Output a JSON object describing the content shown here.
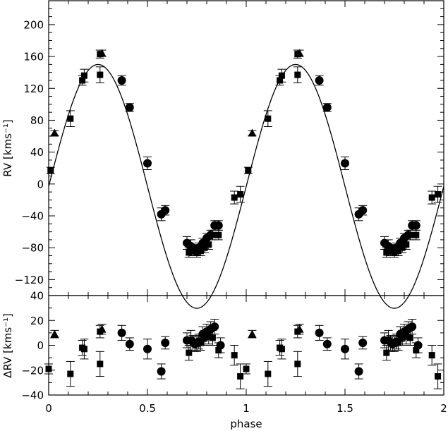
{
  "chart_data": [
    {
      "type": "scatter",
      "panel": "top",
      "xlabel": "",
      "ylabel": "RV  [kms⁻¹]",
      "xlim": [
        0,
        2
      ],
      "ylim": [
        -140,
        230
      ],
      "yticks": [
        -120,
        -80,
        -40,
        0,
        40,
        80,
        120,
        160,
        200
      ],
      "ytick_labels": [
        "−120",
        "−80",
        "−40",
        "0",
        "40",
        "80",
        "120",
        "160",
        "200"
      ],
      "model_curve": {
        "style": "solid line",
        "offset": -3,
        "amplitude": 153,
        "phase_of_max": 0.25,
        "period_in_phase": 1
      },
      "series": [
        {
          "marker": "circle",
          "points": [
            {
              "x": 0.37,
              "y": 130,
              "err": 6
            },
            {
              "x": 0.41,
              "y": 96,
              "err": 5
            },
            {
              "x": 0.5,
              "y": 26,
              "err": 8
            },
            {
              "x": 0.57,
              "y": -38,
              "err": 8
            },
            {
              "x": 0.59,
              "y": -33,
              "err": 6
            },
            {
              "x": 0.7,
              "y": -74,
              "err": 8
            },
            {
              "x": 0.72,
              "y": -78,
              "err": 8
            },
            {
              "x": 0.74,
              "y": -82,
              "err": 6
            },
            {
              "x": 0.76,
              "y": -80,
              "err": 6
            },
            {
              "x": 0.78,
              "y": -74,
              "err": 6
            },
            {
              "x": 0.8,
              "y": -68,
              "err": 6
            },
            {
              "x": 0.82,
              "y": -64,
              "err": 6
            },
            {
              "x": 0.84,
              "y": -52,
              "err": 6
            },
            {
              "x": 0.86,
              "y": -52,
              "err": 6
            },
            {
              "x": 1.37,
              "y": 130,
              "err": 6
            },
            {
              "x": 1.41,
              "y": 96,
              "err": 5
            },
            {
              "x": 1.5,
              "y": 26,
              "err": 8
            },
            {
              "x": 1.57,
              "y": -38,
              "err": 8
            },
            {
              "x": 1.59,
              "y": -33,
              "err": 6
            },
            {
              "x": 1.7,
              "y": -74,
              "err": 8
            },
            {
              "x": 1.72,
              "y": -78,
              "err": 8
            },
            {
              "x": 1.74,
              "y": -82,
              "err": 6
            },
            {
              "x": 1.76,
              "y": -80,
              "err": 6
            },
            {
              "x": 1.78,
              "y": -74,
              "err": 6
            },
            {
              "x": 1.8,
              "y": -68,
              "err": 6
            },
            {
              "x": 1.82,
              "y": -64,
              "err": 6
            },
            {
              "x": 1.84,
              "y": -52,
              "err": 6
            },
            {
              "x": 1.86,
              "y": -52,
              "err": 6
            }
          ]
        },
        {
          "marker": "square",
          "points": [
            {
              "x": 0.01,
              "y": 17,
              "err": 4
            },
            {
              "x": 0.11,
              "y": 82,
              "err": 10
            },
            {
              "x": 0.17,
              "y": 130,
              "err": 6
            },
            {
              "x": 0.18,
              "y": 136,
              "err": 8
            },
            {
              "x": 0.26,
              "y": 163,
              "err": 5
            },
            {
              "x": 0.26,
              "y": 137,
              "err": 10
            },
            {
              "x": 0.71,
              "y": -86,
              "err": 6
            },
            {
              "x": 0.73,
              "y": -84,
              "err": 6
            },
            {
              "x": 0.75,
              "y": -86,
              "err": 6
            },
            {
              "x": 0.77,
              "y": -84,
              "err": 6
            },
            {
              "x": 0.79,
              "y": -80,
              "err": 6
            },
            {
              "x": 0.81,
              "y": -76,
              "err": 6
            },
            {
              "x": 0.83,
              "y": -64,
              "err": 6
            },
            {
              "x": 0.86,
              "y": -64,
              "err": 6
            },
            {
              "x": 0.94,
              "y": -17,
              "err": 8
            },
            {
              "x": 0.97,
              "y": -13,
              "err": 10
            },
            {
              "x": 1.01,
              "y": 17,
              "err": 4
            },
            {
              "x": 1.11,
              "y": 82,
              "err": 10
            },
            {
              "x": 1.17,
              "y": 130,
              "err": 6
            },
            {
              "x": 1.18,
              "y": 136,
              "err": 8
            },
            {
              "x": 1.26,
              "y": 163,
              "err": 5
            },
            {
              "x": 1.26,
              "y": 137,
              "err": 10
            },
            {
              "x": 1.71,
              "y": -86,
              "err": 6
            },
            {
              "x": 1.73,
              "y": -84,
              "err": 6
            },
            {
              "x": 1.75,
              "y": -86,
              "err": 6
            },
            {
              "x": 1.77,
              "y": -84,
              "err": 6
            },
            {
              "x": 1.79,
              "y": -80,
              "err": 6
            },
            {
              "x": 1.81,
              "y": -76,
              "err": 6
            },
            {
              "x": 1.83,
              "y": -64,
              "err": 6
            },
            {
              "x": 1.86,
              "y": -64,
              "err": 6
            },
            {
              "x": 1.94,
              "y": -17,
              "err": 8
            },
            {
              "x": 1.97,
              "y": -13,
              "err": 10
            }
          ]
        },
        {
          "marker": "triangle",
          "points": [
            {
              "x": 0.03,
              "y": 64,
              "err": 3
            },
            {
              "x": 0.27,
              "y": 164,
              "err": 4
            },
            {
              "x": 1.03,
              "y": 64,
              "err": 3
            },
            {
              "x": 1.27,
              "y": 164,
              "err": 4
            }
          ]
        }
      ]
    },
    {
      "type": "scatter",
      "panel": "bottom",
      "xlabel": "phase",
      "ylabel": "ΔRV  [kms⁻¹]",
      "xlim": [
        0,
        2
      ],
      "ylim": [
        -40,
        40
      ],
      "xticks": [
        0,
        0.5,
        1,
        1.5,
        2
      ],
      "xtick_labels": [
        "0",
        "0.5",
        "1",
        "1.5",
        "2"
      ],
      "yticks": [
        -40,
        -20,
        0,
        20,
        40
      ],
      "ytick_labels": [
        "−40",
        "−20",
        "0",
        "20",
        "40"
      ],
      "series": [
        {
          "marker": "circle",
          "points": [
            {
              "x": 0.37,
              "y": 10,
              "err": 6
            },
            {
              "x": 0.41,
              "y": 1,
              "err": 5
            },
            {
              "x": 0.5,
              "y": -3,
              "err": 8
            },
            {
              "x": 0.57,
              "y": -21,
              "err": 6
            },
            {
              "x": 0.59,
              "y": 2,
              "err": 5
            },
            {
              "x": 0.7,
              "y": 4,
              "err": 6
            },
            {
              "x": 0.72,
              "y": 4,
              "err": 8
            },
            {
              "x": 0.74,
              "y": 1,
              "err": 6
            },
            {
              "x": 0.76,
              "y": 3,
              "err": 6
            },
            {
              "x": 0.78,
              "y": 9,
              "err": 6
            },
            {
              "x": 0.8,
              "y": 11,
              "err": 6
            },
            {
              "x": 0.82,
              "y": 13,
              "err": 6
            },
            {
              "x": 0.84,
              "y": 15,
              "err": 6
            },
            {
              "x": 0.87,
              "y": 0,
              "err": 6
            },
            {
              "x": 1.37,
              "y": 10,
              "err": 6
            },
            {
              "x": 1.41,
              "y": 1,
              "err": 5
            },
            {
              "x": 1.5,
              "y": -3,
              "err": 8
            },
            {
              "x": 1.57,
              "y": -21,
              "err": 6
            },
            {
              "x": 1.59,
              "y": 2,
              "err": 5
            },
            {
              "x": 1.7,
              "y": 4,
              "err": 6
            },
            {
              "x": 1.72,
              "y": 4,
              "err": 8
            },
            {
              "x": 1.74,
              "y": 1,
              "err": 6
            },
            {
              "x": 1.76,
              "y": 3,
              "err": 6
            },
            {
              "x": 1.78,
              "y": 9,
              "err": 6
            },
            {
              "x": 1.8,
              "y": 11,
              "err": 6
            },
            {
              "x": 1.82,
              "y": 13,
              "err": 6
            },
            {
              "x": 1.84,
              "y": 15,
              "err": 6
            },
            {
              "x": 1.87,
              "y": 0,
              "err": 6
            }
          ]
        },
        {
          "marker": "square",
          "points": [
            {
              "x": 0.0,
              "y": -19,
              "err": 4
            },
            {
              "x": 0.11,
              "y": -23,
              "err": 10
            },
            {
              "x": 0.17,
              "y": -2,
              "err": 6
            },
            {
              "x": 0.18,
              "y": -3,
              "err": 8
            },
            {
              "x": 0.26,
              "y": 11,
              "err": 5
            },
            {
              "x": 0.26,
              "y": -15,
              "err": 10
            },
            {
              "x": 0.71,
              "y": -6,
              "err": 6
            },
            {
              "x": 0.73,
              "y": 2,
              "err": 6
            },
            {
              "x": 0.75,
              "y": 1,
              "err": 6
            },
            {
              "x": 0.77,
              "y": 2,
              "err": 6
            },
            {
              "x": 0.79,
              "y": 6,
              "err": 6
            },
            {
              "x": 0.81,
              "y": 7,
              "err": 6
            },
            {
              "x": 0.83,
              "y": 6,
              "err": 6
            },
            {
              "x": 0.86,
              "y": -4,
              "err": 6
            },
            {
              "x": 0.94,
              "y": -8,
              "err": 8
            },
            {
              "x": 0.97,
              "y": -25,
              "err": 10
            },
            {
              "x": 1.0,
              "y": -19,
              "err": 4
            },
            {
              "x": 1.11,
              "y": -23,
              "err": 10
            },
            {
              "x": 1.17,
              "y": -2,
              "err": 6
            },
            {
              "x": 1.18,
              "y": -3,
              "err": 8
            },
            {
              "x": 1.26,
              "y": 11,
              "err": 5
            },
            {
              "x": 1.26,
              "y": -15,
              "err": 10
            },
            {
              "x": 1.71,
              "y": -6,
              "err": 6
            },
            {
              "x": 1.73,
              "y": 2,
              "err": 6
            },
            {
              "x": 1.75,
              "y": 1,
              "err": 6
            },
            {
              "x": 1.77,
              "y": 2,
              "err": 6
            },
            {
              "x": 1.79,
              "y": 6,
              "err": 6
            },
            {
              "x": 1.81,
              "y": 7,
              "err": 6
            },
            {
              "x": 1.83,
              "y": 6,
              "err": 6
            },
            {
              "x": 1.86,
              "y": -4,
              "err": 6
            },
            {
              "x": 1.94,
              "y": -8,
              "err": 8
            },
            {
              "x": 1.97,
              "y": -25,
              "err": 10
            }
          ]
        },
        {
          "marker": "triangle",
          "points": [
            {
              "x": 0.03,
              "y": 9,
              "err": 3
            },
            {
              "x": 0.27,
              "y": 13,
              "err": 4
            },
            {
              "x": 1.03,
              "y": 9,
              "err": 3
            },
            {
              "x": 1.27,
              "y": 13,
              "err": 4
            }
          ]
        }
      ]
    }
  ]
}
